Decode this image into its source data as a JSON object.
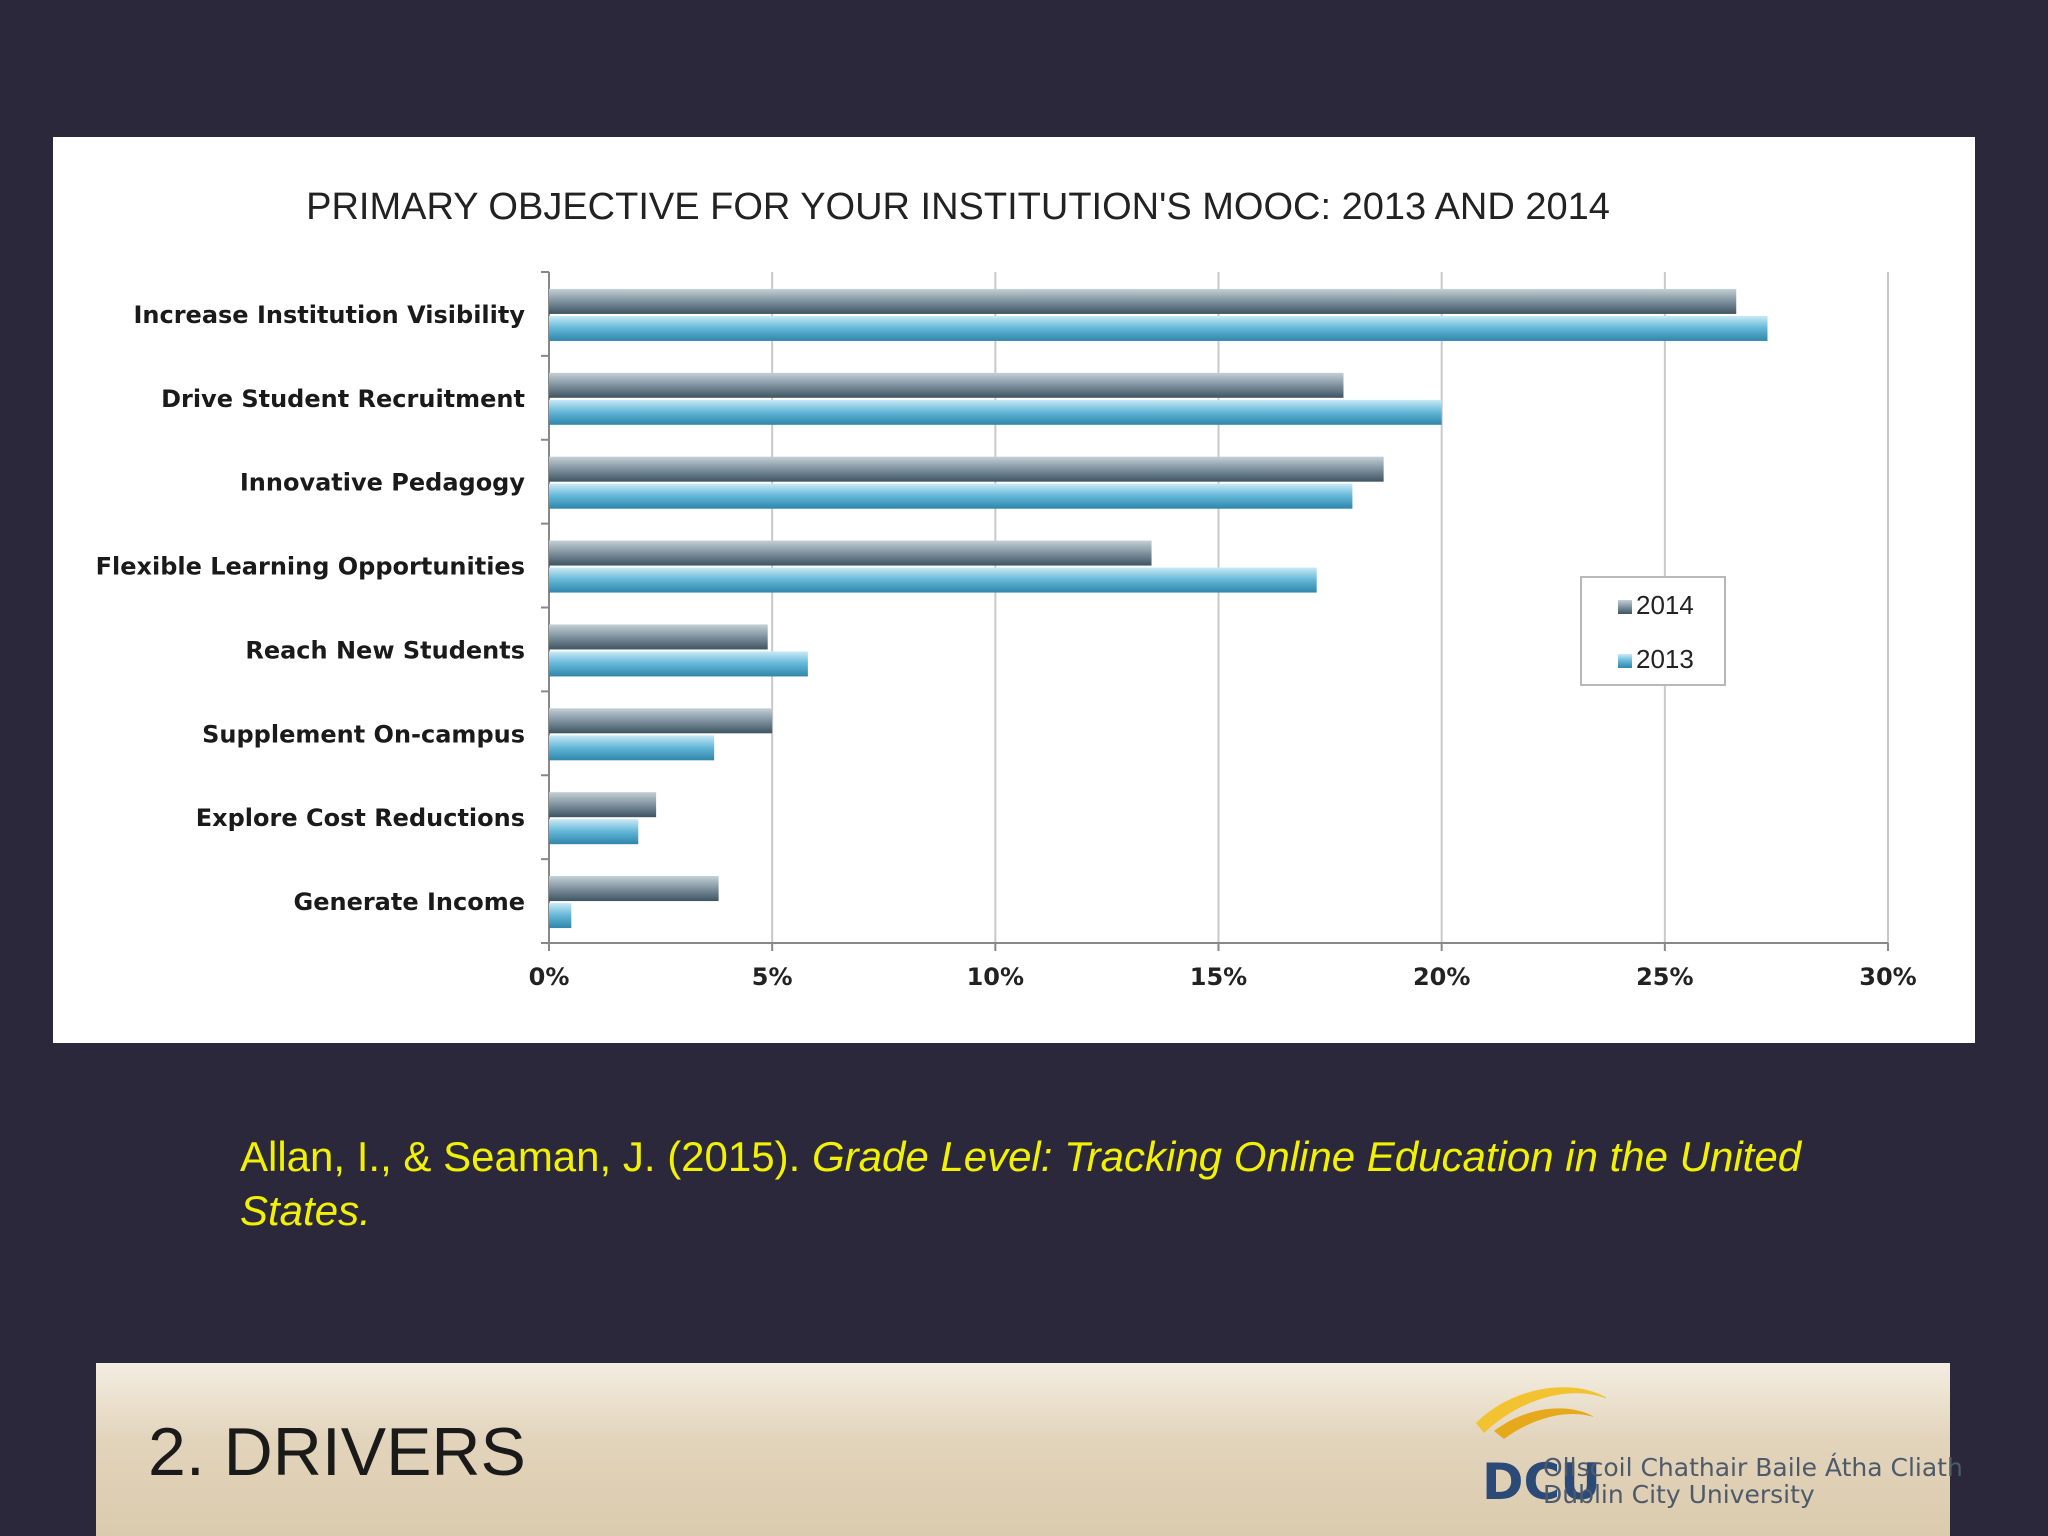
{
  "chart_data": {
    "type": "bar",
    "orientation": "horizontal",
    "title": "PRIMARY OBJECTIVE FOR YOUR INSTITUTION'S MOOC: 2013 AND 2014",
    "categories": [
      "Increase Institution Visibility",
      "Drive Student Recruitment",
      "Innovative Pedagogy",
      "Flexible Learning Opportunities",
      "Reach New Students",
      "Supplement On-campus",
      "Explore Cost Reductions",
      "Generate Income"
    ],
    "series": [
      {
        "name": "2014",
        "values": [
          26.6,
          17.8,
          18.7,
          13.5,
          4.9,
          5.0,
          2.4,
          3.8
        ],
        "color": "#687e8c"
      },
      {
        "name": "2013",
        "values": [
          27.3,
          20.0,
          18.0,
          17.2,
          5.8,
          3.7,
          2.0,
          0.5
        ],
        "color": "#4fa3c6"
      }
    ],
    "xlim": [
      0,
      30
    ],
    "xticks": [
      "0%",
      "5%",
      "10%",
      "15%",
      "20%",
      "25%",
      "30%"
    ],
    "grid": true,
    "legend_position": "right"
  },
  "citation": {
    "authors": "Allan, I., & Seaman, J. (2015).",
    "title": "Grade Level: Tracking Online Education in the United States."
  },
  "footer": {
    "section_title": "2. DRIVERS",
    "logo_text": "DCU",
    "logo_line1": "Ollscoil Chathair Baile Átha Cliath",
    "logo_line2": "Dublin City University"
  },
  "colors": {
    "background": "#2b283c",
    "citation_text": "#f2f200",
    "footer_bar": "#e2d4bb"
  }
}
